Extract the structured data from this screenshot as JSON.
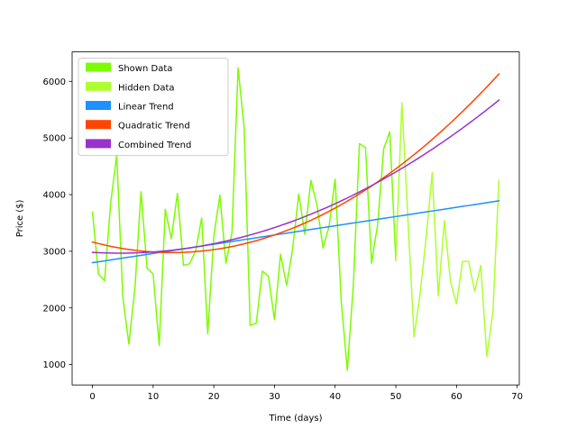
{
  "chart_data": {
    "type": "line",
    "title": "",
    "xlabel": "Time (days)",
    "ylabel": "Price ($)",
    "xlim": [
      -3.35,
      70.35
    ],
    "ylim": [
      640,
      6520
    ],
    "xticks": [
      0,
      10,
      20,
      30,
      40,
      50,
      60,
      70
    ],
    "yticks": [
      1000,
      2000,
      3000,
      4000,
      5000,
      6000
    ],
    "grid": false,
    "legend_position": "top-left",
    "series": [
      {
        "name": "Shown Data",
        "color": "#7cfc00",
        "kind": "line",
        "x": [
          0,
          1,
          2,
          3,
          4,
          5,
          6,
          7,
          8,
          9,
          10,
          11,
          12,
          13,
          14,
          15,
          16,
          17,
          18,
          19,
          20,
          21,
          22,
          23,
          24,
          25,
          26,
          27,
          28,
          29,
          30,
          31,
          32,
          33,
          34,
          35,
          36,
          37,
          38,
          39,
          40,
          41,
          42,
          43,
          44,
          45,
          46,
          47,
          48,
          49,
          50
        ],
        "y": [
          3690,
          2600,
          2480,
          3850,
          4700,
          2200,
          1360,
          2350,
          4050,
          2700,
          2600,
          1340,
          3740,
          3220,
          4020,
          2750,
          2780,
          3000,
          3590,
          1540,
          3270,
          3990,
          2790,
          3330,
          6240,
          5180,
          1690,
          1730,
          2650,
          2560,
          1790,
          2950,
          2400,
          3050,
          4010,
          3300,
          4250,
          3820,
          3060,
          3440,
          4270,
          2130,
          900,
          2400,
          4900,
          4830,
          2790,
          3470,
          4810,
          5110,
          2840
        ]
      },
      {
        "name": "Hidden Data",
        "color": "#adff2f",
        "kind": "line",
        "x": [
          50,
          51,
          52,
          53,
          54,
          55,
          56,
          57,
          58,
          59,
          60,
          61,
          62,
          63,
          64,
          65,
          66,
          67
        ],
        "y": [
          2840,
          5620,
          3560,
          1490,
          2240,
          3250,
          4390,
          2210,
          3540,
          2470,
          2070,
          2820,
          2820,
          2290,
          2750,
          1140,
          1930,
          4250
        ]
      },
      {
        "name": "Linear Trend",
        "color": "#1e90ff",
        "kind": "linear",
        "x_range": [
          0,
          67
        ],
        "coefficients": [
          2798,
          16.3
        ]
      },
      {
        "name": "Quadratic Trend",
        "color": "#ff4500",
        "kind": "quadratic",
        "x_range": [
          0,
          67
        ],
        "coefficients": [
          3163,
          -28.4,
          1.085
        ]
      },
      {
        "name": "Combined Trend",
        "color": "#9932cc",
        "kind": "quadratic",
        "x_range": [
          0,
          67
        ],
        "coefficients": [
          2980,
          -6.1,
          0.69
        ]
      }
    ]
  }
}
